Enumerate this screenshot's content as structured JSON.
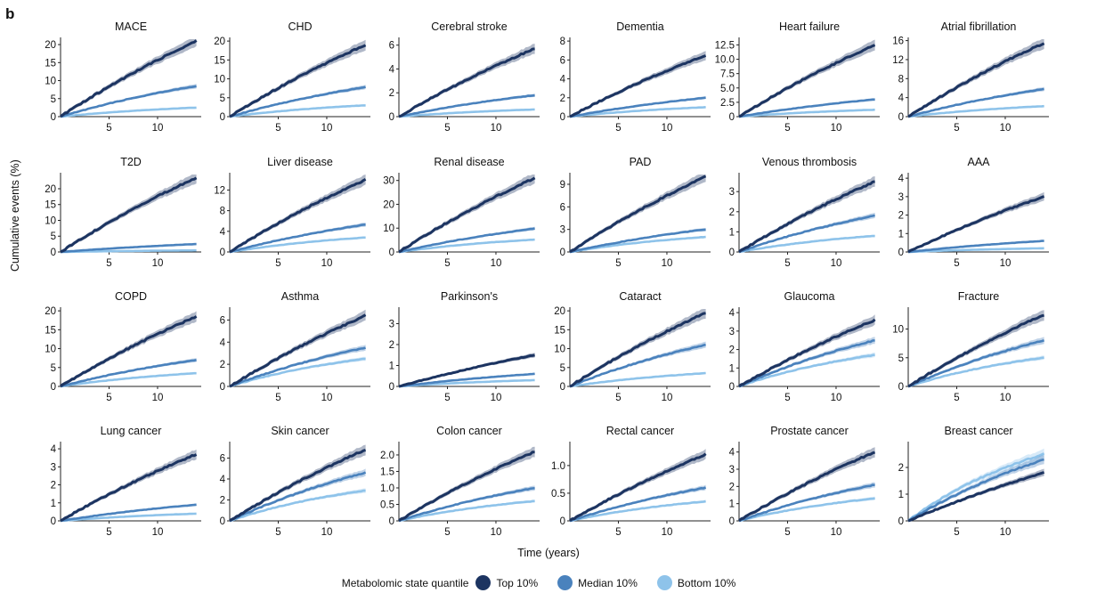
{
  "figure": {
    "panel_label": "b",
    "ylabel": "Cumulative events (%)",
    "xlabel": "Time (years)"
  },
  "legend": {
    "title": "Metabolomic state quantile",
    "entries": [
      {
        "label": "Top 10%",
        "color": "#1c3461"
      },
      {
        "label": "Median 10%",
        "color": "#4a82bd"
      },
      {
        "label": "Bottom 10%",
        "color": "#8ec3ea"
      }
    ]
  },
  "chart_data": [
    {
      "type": "line",
      "title": "MACE",
      "xlim": [
        0,
        14.5
      ],
      "ylim": [
        0,
        21.5
      ],
      "xticks": [
        5,
        10
      ],
      "yticks": [
        0,
        5,
        10,
        15,
        20
      ],
      "ytick_labels": [
        "0",
        "5",
        "10",
        "15",
        "20"
      ],
      "series": [
        {
          "name": "Top 10%",
          "end": 21.0
        },
        {
          "name": "Median 10%",
          "end": 8.5
        },
        {
          "name": "Bottom 10%",
          "end": 2.5
        }
      ]
    },
    {
      "type": "line",
      "title": "CHD",
      "xlim": [
        0,
        14.5
      ],
      "ylim": [
        0,
        20.5
      ],
      "xticks": [
        5,
        10
      ],
      "yticks": [
        0,
        5,
        10,
        15,
        20
      ],
      "ytick_labels": [
        "0",
        "5",
        "10",
        "15",
        "20"
      ],
      "series": [
        {
          "name": "Top 10%",
          "end": 19.0
        },
        {
          "name": "Median 10%",
          "end": 7.8
        },
        {
          "name": "Bottom 10%",
          "end": 3.0
        }
      ]
    },
    {
      "type": "line",
      "title": "Cerebral stroke",
      "xlim": [
        0,
        14.5
      ],
      "ylim": [
        0,
        6.5
      ],
      "xticks": [
        5,
        10
      ],
      "yticks": [
        0,
        2,
        4,
        6
      ],
      "ytick_labels": [
        "0",
        "2",
        "4",
        "6"
      ],
      "series": [
        {
          "name": "Top 10%",
          "end": 5.7
        },
        {
          "name": "Median 10%",
          "end": 1.8
        },
        {
          "name": "Bottom 10%",
          "end": 0.6
        }
      ]
    },
    {
      "type": "line",
      "title": "Dementia",
      "xlim": [
        0,
        14.5
      ],
      "ylim": [
        0,
        8.2
      ],
      "xticks": [
        5,
        10
      ],
      "yticks": [
        0,
        2,
        4,
        6,
        8
      ],
      "ytick_labels": [
        "0",
        "2",
        "4",
        "6",
        "8"
      ],
      "series": [
        {
          "name": "Top 10%",
          "end": 6.5
        },
        {
          "name": "Median 10%",
          "end": 2.0
        },
        {
          "name": "Bottom 10%",
          "end": 1.0
        }
      ]
    },
    {
      "type": "line",
      "title": "Heart failure",
      "xlim": [
        0,
        14.5
      ],
      "ylim": [
        0,
        13.5
      ],
      "xticks": [
        5,
        10
      ],
      "yticks": [
        0,
        2.5,
        5,
        7.5,
        10,
        12.5
      ],
      "ytick_labels": [
        "0",
        "2.5",
        "5.0",
        "7.5",
        "10.0",
        "12.5"
      ],
      "series": [
        {
          "name": "Top 10%",
          "end": 12.5
        },
        {
          "name": "Median 10%",
          "end": 3.0
        },
        {
          "name": "Bottom 10%",
          "end": 1.2
        }
      ]
    },
    {
      "type": "line",
      "title": "Atrial fibrillation",
      "xlim": [
        0,
        14.5
      ],
      "ylim": [
        0,
        16.3
      ],
      "xticks": [
        5,
        10
      ],
      "yticks": [
        0,
        4,
        8,
        12,
        16
      ],
      "ytick_labels": [
        "0",
        "4",
        "8",
        "12",
        "16"
      ],
      "series": [
        {
          "name": "Top 10%",
          "end": 15.5
        },
        {
          "name": "Median 10%",
          "end": 5.8
        },
        {
          "name": "Bottom 10%",
          "end": 2.2
        }
      ]
    },
    {
      "type": "line",
      "title": "T2D",
      "xlim": [
        0,
        14.5
      ],
      "ylim": [
        0,
        24.5
      ],
      "xticks": [
        5,
        10
      ],
      "yticks": [
        0,
        5,
        10,
        15,
        20
      ],
      "ytick_labels": [
        "0",
        "5",
        "10",
        "15",
        "20"
      ],
      "series": [
        {
          "name": "Top 10%",
          "end": 23.5
        },
        {
          "name": "Median 10%",
          "end": 2.5
        },
        {
          "name": "Bottom 10%",
          "end": 0.5
        }
      ]
    },
    {
      "type": "line",
      "title": "Liver disease",
      "xlim": [
        0,
        14.5
      ],
      "ylim": [
        0,
        15
      ],
      "xticks": [
        5,
        10
      ],
      "yticks": [
        0,
        4,
        8,
        12
      ],
      "ytick_labels": [
        "0",
        "4",
        "8",
        "12"
      ],
      "series": [
        {
          "name": "Top 10%",
          "end": 14.0
        },
        {
          "name": "Median 10%",
          "end": 5.3
        },
        {
          "name": "Bottom 10%",
          "end": 2.8
        }
      ]
    },
    {
      "type": "line",
      "title": "Renal disease",
      "xlim": [
        0,
        14.5
      ],
      "ylim": [
        0,
        32.5
      ],
      "xticks": [
        5,
        10
      ],
      "yticks": [
        0,
        10,
        20,
        30
      ],
      "ytick_labels": [
        "0",
        "10",
        "20",
        "30"
      ],
      "series": [
        {
          "name": "Top 10%",
          "end": 31.0
        },
        {
          "name": "Median 10%",
          "end": 9.8
        },
        {
          "name": "Bottom 10%",
          "end": 5.2
        }
      ]
    },
    {
      "type": "line",
      "title": "PAD",
      "xlim": [
        0,
        14.5
      ],
      "ylim": [
        0,
        10.3
      ],
      "xticks": [
        5,
        10
      ],
      "yticks": [
        0,
        3,
        6,
        9
      ],
      "ytick_labels": [
        "0",
        "3",
        "6",
        "9"
      ],
      "series": [
        {
          "name": "Top 10%",
          "end": 10.0
        },
        {
          "name": "Median 10%",
          "end": 3.0
        },
        {
          "name": "Bottom 10%",
          "end": 2.0
        }
      ]
    },
    {
      "type": "line",
      "title": "Venous thrombosis",
      "xlim": [
        0,
        14.5
      ],
      "ylim": [
        0,
        3.85
      ],
      "xticks": [
        5,
        10
      ],
      "yticks": [
        0,
        1,
        2,
        3
      ],
      "ytick_labels": [
        "0",
        "1",
        "2",
        "3"
      ],
      "series": [
        {
          "name": "Top 10%",
          "end": 3.5
        },
        {
          "name": "Median 10%",
          "end": 1.8
        },
        {
          "name": "Bottom 10%",
          "end": 0.8
        }
      ]
    },
    {
      "type": "line",
      "title": "AAA",
      "xlim": [
        0,
        14.5
      ],
      "ylim": [
        0,
        4.2
      ],
      "xticks": [
        5,
        10
      ],
      "yticks": [
        0,
        1,
        2,
        3,
        4
      ],
      "ytick_labels": [
        "0",
        "1",
        "2",
        "3",
        "4"
      ],
      "series": [
        {
          "name": "Top 10%",
          "end": 3.0
        },
        {
          "name": "Median 10%",
          "end": 0.6
        },
        {
          "name": "Bottom 10%",
          "end": 0.2
        }
      ]
    },
    {
      "type": "line",
      "title": "COPD",
      "xlim": [
        0,
        14.5
      ],
      "ylim": [
        0,
        20.5
      ],
      "xticks": [
        5,
        10
      ],
      "yticks": [
        0,
        5,
        10,
        15,
        20
      ],
      "ytick_labels": [
        "0",
        "5",
        "10",
        "15",
        "20"
      ],
      "series": [
        {
          "name": "Top 10%",
          "end": 18.5
        },
        {
          "name": "Median 10%",
          "end": 7.0
        },
        {
          "name": "Bottom 10%",
          "end": 3.5
        }
      ]
    },
    {
      "type": "line",
      "title": "Asthma",
      "xlim": [
        0,
        14.5
      ],
      "ylim": [
        0,
        7
      ],
      "xticks": [
        5,
        10
      ],
      "yticks": [
        0,
        2,
        4,
        6
      ],
      "ytick_labels": [
        "0",
        "2",
        "4",
        "6"
      ],
      "series": [
        {
          "name": "Top 10%",
          "end": 6.4
        },
        {
          "name": "Median 10%",
          "end": 3.5
        },
        {
          "name": "Bottom 10%",
          "end": 2.5
        }
      ]
    },
    {
      "type": "line",
      "title": "Parkinson's",
      "xlim": [
        0,
        14.5
      ],
      "ylim": [
        0,
        3.7
      ],
      "xticks": [
        5,
        10
      ],
      "yticks": [
        0,
        1,
        2,
        3
      ],
      "ytick_labels": [
        "0",
        "1",
        "2",
        "3"
      ],
      "series": [
        {
          "name": "Top 10%",
          "end": 1.5
        },
        {
          "name": "Median 10%",
          "end": 0.6
        },
        {
          "name": "Bottom 10%",
          "end": 0.3
        }
      ]
    },
    {
      "type": "line",
      "title": "Cataract",
      "xlim": [
        0,
        14.5
      ],
      "ylim": [
        0,
        20.5
      ],
      "xticks": [
        5,
        10
      ],
      "yticks": [
        0,
        5,
        10,
        15,
        20
      ],
      "ytick_labels": [
        "0",
        "5",
        "10",
        "15",
        "20"
      ],
      "series": [
        {
          "name": "Top 10%",
          "end": 19.5
        },
        {
          "name": "Median 10%",
          "end": 11.0
        },
        {
          "name": "Bottom 10%",
          "end": 3.5
        }
      ]
    },
    {
      "type": "line",
      "title": "Glaucoma",
      "xlim": [
        0,
        14.5
      ],
      "ylim": [
        0,
        4.2
      ],
      "xticks": [
        5,
        10
      ],
      "yticks": [
        0,
        1,
        2,
        3,
        4
      ],
      "ytick_labels": [
        "0",
        "1",
        "2",
        "3",
        "4"
      ],
      "series": [
        {
          "name": "Top 10%",
          "end": 3.6
        },
        {
          "name": "Median 10%",
          "end": 2.5
        },
        {
          "name": "Bottom 10%",
          "end": 1.7
        }
      ]
    },
    {
      "type": "line",
      "title": "Fracture",
      "xlim": [
        0,
        14.5
      ],
      "ylim": [
        0,
        13.5
      ],
      "xticks": [
        5,
        10
      ],
      "yticks": [
        0,
        5,
        10
      ],
      "ytick_labels": [
        "0",
        "5",
        "10"
      ],
      "series": [
        {
          "name": "Top 10%",
          "end": 12.5
        },
        {
          "name": "Median 10%",
          "end": 8.0
        },
        {
          "name": "Bottom 10%",
          "end": 5.0
        }
      ]
    },
    {
      "type": "line",
      "title": "Lung cancer",
      "xlim": [
        0,
        14.5
      ],
      "ylim": [
        0,
        4.3
      ],
      "xticks": [
        5,
        10
      ],
      "yticks": [
        0,
        1,
        2,
        3,
        4
      ],
      "ytick_labels": [
        "0",
        "1",
        "2",
        "3",
        "4"
      ],
      "series": [
        {
          "name": "Top 10%",
          "end": 3.7
        },
        {
          "name": "Median 10%",
          "end": 0.9
        },
        {
          "name": "Bottom 10%",
          "end": 0.4
        }
      ]
    },
    {
      "type": "line",
      "title": "Skin cancer",
      "xlim": [
        0,
        14.5
      ],
      "ylim": [
        0,
        7.4
      ],
      "xticks": [
        5,
        10
      ],
      "yticks": [
        0,
        2,
        4,
        6
      ],
      "ytick_labels": [
        "0",
        "2",
        "4",
        "6"
      ],
      "series": [
        {
          "name": "Top 10%",
          "end": 6.8
        },
        {
          "name": "Median 10%",
          "end": 4.6
        },
        {
          "name": "Bottom 10%",
          "end": 2.9
        }
      ]
    },
    {
      "type": "line",
      "title": "Colon cancer",
      "xlim": [
        0,
        14.5
      ],
      "ylim": [
        0,
        2.35
      ],
      "xticks": [
        5,
        10
      ],
      "yticks": [
        0,
        0.5,
        1,
        1.5,
        2
      ],
      "ytick_labels": [
        "0",
        "0.5",
        "1.0",
        "1.5",
        "2.0"
      ],
      "series": [
        {
          "name": "Top 10%",
          "end": 2.1
        },
        {
          "name": "Median 10%",
          "end": 1.0
        },
        {
          "name": "Bottom 10%",
          "end": 0.6
        }
      ]
    },
    {
      "type": "line",
      "title": "Rectal cancer",
      "xlim": [
        0,
        14.5
      ],
      "ylim": [
        0,
        1.4
      ],
      "xticks": [
        5,
        10
      ],
      "yticks": [
        0,
        0.5,
        1
      ],
      "ytick_labels": [
        "0",
        "0.5",
        "1.0"
      ],
      "series": [
        {
          "name": "Top 10%",
          "end": 1.2
        },
        {
          "name": "Median 10%",
          "end": 0.6
        },
        {
          "name": "Bottom 10%",
          "end": 0.35
        }
      ]
    },
    {
      "type": "line",
      "title": "Prostate cancer",
      "xlim": [
        0,
        14.5
      ],
      "ylim": [
        0,
        4.5
      ],
      "xticks": [
        5,
        10
      ],
      "yticks": [
        0,
        1,
        2,
        3,
        4
      ],
      "ytick_labels": [
        "0",
        "1",
        "2",
        "3",
        "4"
      ],
      "series": [
        {
          "name": "Top 10%",
          "end": 4.0
        },
        {
          "name": "Median 10%",
          "end": 2.1
        },
        {
          "name": "Bottom 10%",
          "end": 1.3
        }
      ]
    },
    {
      "type": "line",
      "title": "Breast cancer",
      "xlim": [
        0,
        14.5
      ],
      "ylim": [
        0,
        2.9
      ],
      "xticks": [
        5,
        10
      ],
      "yticks": [
        0,
        1,
        2
      ],
      "ytick_labels": [
        "0",
        "1",
        "2"
      ],
      "series": [
        {
          "name": "Top 10%",
          "end": 1.8
        },
        {
          "name": "Median 10%",
          "end": 2.3
        },
        {
          "name": "Bottom 10%",
          "end": 2.5
        }
      ]
    }
  ]
}
